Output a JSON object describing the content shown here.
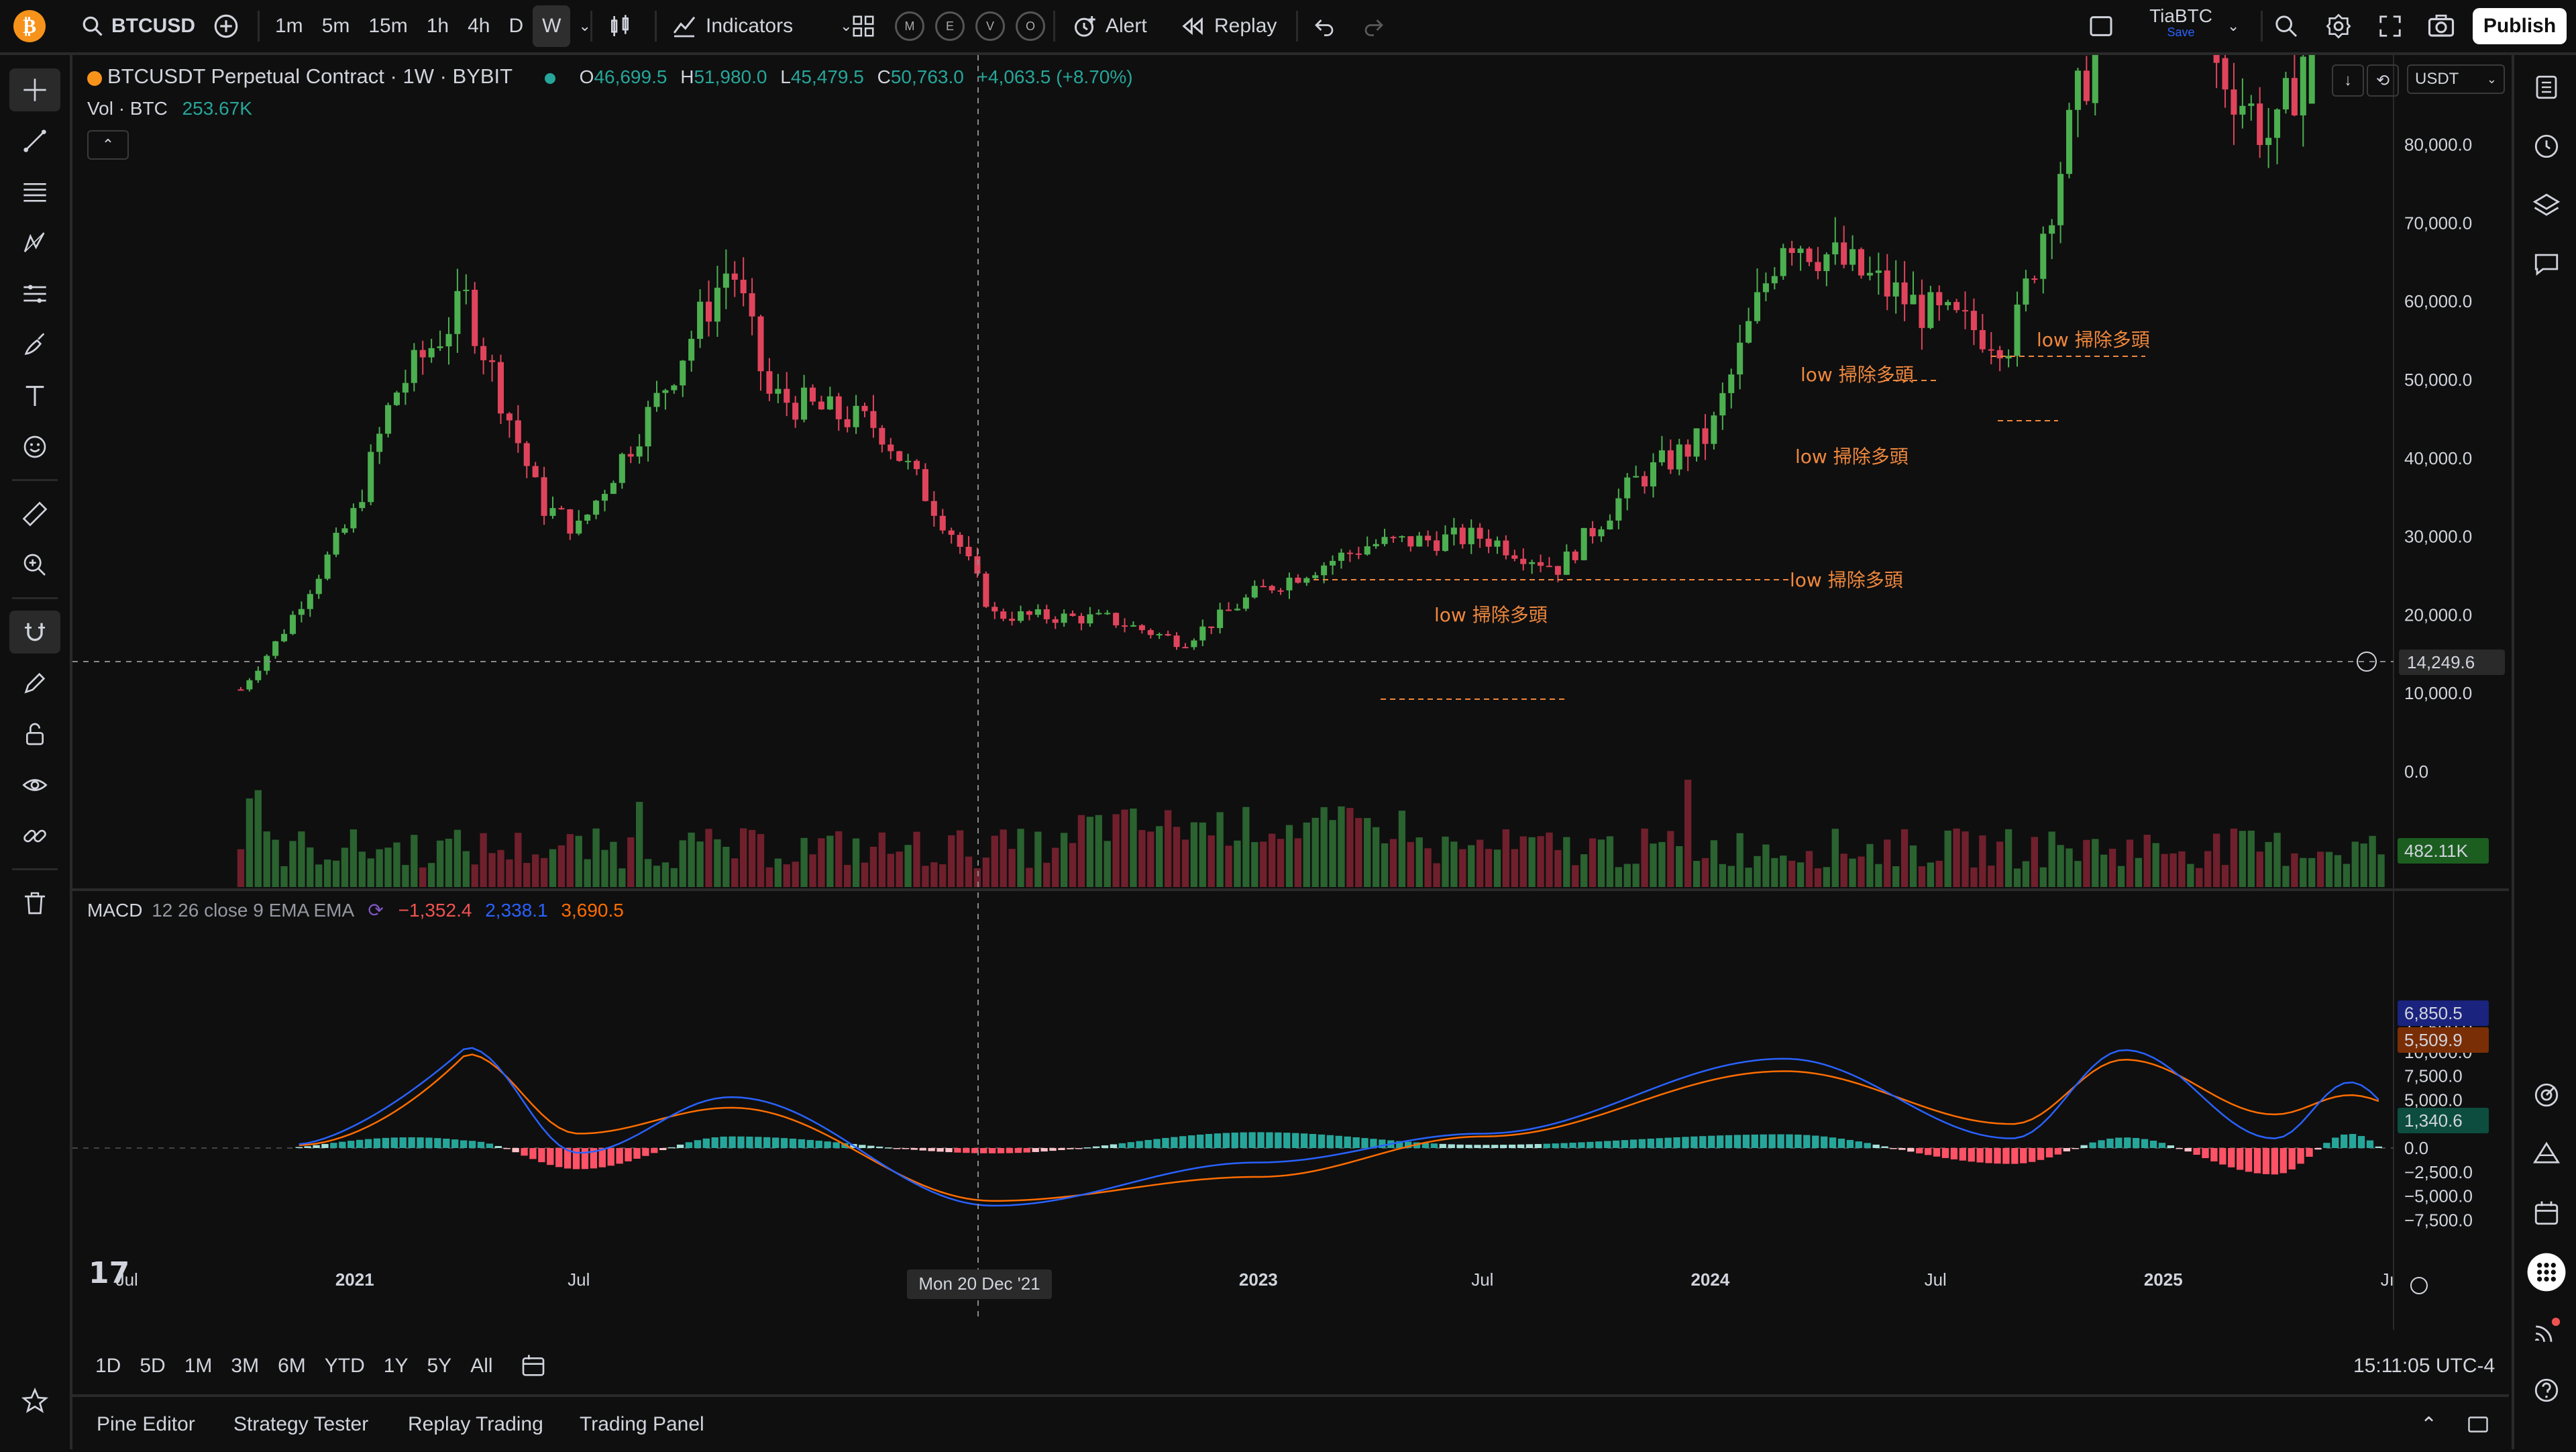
{
  "topbar": {
    "symbol": "BTCUSD",
    "timeframes": [
      "1m",
      "5m",
      "15m",
      "1h",
      "4h",
      "D",
      "W"
    ],
    "active_timeframe": "W",
    "indicators_label": "Indicators",
    "alert_label": "Alert",
    "replay_label": "Replay",
    "letter_buttons": [
      "M",
      "E",
      "V",
      "O"
    ],
    "account_name": "TiaBTC",
    "account_sub": "Save",
    "publish_label": "Publish"
  },
  "legend": {
    "title": "BTCUSDT Perpetual Contract · 1W · BYBIT",
    "o_label": "O",
    "o_val": "46,699.5",
    "h_label": "H",
    "h_val": "51,980.0",
    "l_label": "L",
    "l_val": "45,479.5",
    "c_label": "C",
    "c_val": "50,763.0",
    "change": "+4,063.5 (+8.70%)",
    "vol_label": "Vol · BTC",
    "vol_val": "253.67K"
  },
  "macd_legend": {
    "label": "MACD",
    "params": "12 26 close 9 EMA EMA",
    "hist": "−1,352.4",
    "macd": "2,338.1",
    "signal": "3,690.5"
  },
  "price_axis": {
    "currency": "USDT",
    "ticks": [
      "80,000.0",
      "70,000.0",
      "60,000.0",
      "50,000.0",
      "40,000.0",
      "30,000.0",
      "20,000.0",
      "10,000.0",
      "0.0"
    ],
    "crosshair_price": "14,249.6",
    "volume_badge": "482.11K"
  },
  "macd_axis": {
    "ticks": [
      "12,500.0",
      "10,000.0",
      "7,500.0",
      "5,000.0",
      "2,500.0",
      "0.0",
      "−2,500.0",
      "−5,000.0",
      "−7,500.0"
    ],
    "macd_badge": "6,850.5",
    "signal_badge": "5,509.9",
    "hist_badge": "1,340.6"
  },
  "time_axis": {
    "ticks": [
      "Jul",
      "2021",
      "Jul",
      "Jul",
      "2023",
      "Jul",
      "2024",
      "Jul",
      "2025",
      "Jı"
    ],
    "crosshair_date": "Mon 20 Dec '21"
  },
  "annotations": [
    "low 掃除多頭",
    "low 掃除多頭",
    "low 掃除多頭",
    "low 掃除多頭",
    "low 掃除多頭"
  ],
  "range_bar": {
    "ranges": [
      "1D",
      "5D",
      "1M",
      "3M",
      "6M",
      "YTD",
      "1Y",
      "5Y",
      "All"
    ],
    "clock": "15:11:05 UTC-4"
  },
  "bottom_tabs": [
    "Pine Editor",
    "Strategy Tester",
    "Replay Trading",
    "Trading Panel"
  ],
  "colors": {
    "up": "#26a69a",
    "down": "#ef5350",
    "candle_up": "#4caf50",
    "candle_down": "#e0445c",
    "macd_line": "#2962ff",
    "signal_line": "#ff6d00",
    "annotation": "#f0883e",
    "background": "#0f0f0f"
  },
  "chart_data": {
    "type": "candlestick",
    "symbol": "BTCUSDT",
    "interval": "1W",
    "price_points": [
      {
        "date": "2020-11",
        "close": 17000
      },
      {
        "date": "2021-01",
        "close": 33000
      },
      {
        "date": "2021-02",
        "close": 48000
      },
      {
        "date": "2021-04",
        "close": 60000
      },
      {
        "date": "2021-06",
        "close": 34000
      },
      {
        "date": "2021-07",
        "close": 31000
      },
      {
        "date": "2021-09",
        "close": 47000
      },
      {
        "date": "2021-11",
        "close": 65000
      },
      {
        "date": "2021-12",
        "close": 48000
      },
      {
        "date": "2022-03",
        "close": 44000
      },
      {
        "date": "2022-05",
        "close": 30000
      },
      {
        "date": "2022-06",
        "close": 20000
      },
      {
        "date": "2022-09",
        "close": 19500
      },
      {
        "date": "2022-11",
        "close": 16500
      },
      {
        "date": "2023-01",
        "close": 23000
      },
      {
        "date": "2023-04",
        "close": 29000
      },
      {
        "date": "2023-07",
        "close": 30000
      },
      {
        "date": "2023-09",
        "close": 26000
      },
      {
        "date": "2023-11",
        "close": 37000
      },
      {
        "date": "2024-01",
        "close": 43000
      },
      {
        "date": "2024-03",
        "close": 69000
      },
      {
        "date": "2024-07",
        "close": 58000
      },
      {
        "date": "2024-09",
        "close": 55000
      },
      {
        "date": "2024-11",
        "close": 90000
      },
      {
        "date": "2025-01",
        "close": 100000
      },
      {
        "date": "2025-04",
        "close": 80000
      },
      {
        "date": "2025-05",
        "close": 95000
      }
    ],
    "macd_points": [
      {
        "date": "2021-04",
        "macd": 10500,
        "signal": 9800
      },
      {
        "date": "2021-07",
        "macd": -500,
        "signal": 1500
      },
      {
        "date": "2021-11",
        "macd": 5300,
        "signal": 4200
      },
      {
        "date": "2022-06",
        "macd": -6000,
        "signal": -5500
      },
      {
        "date": "2023-01",
        "macd": -1500,
        "signal": -3000
      },
      {
        "date": "2023-07",
        "macd": 1500,
        "signal": 1200
      },
      {
        "date": "2024-03",
        "macd": 9300,
        "signal": 8000
      },
      {
        "date": "2024-09",
        "macd": 1000,
        "signal": 2500
      },
      {
        "date": "2024-12",
        "macd": 10200,
        "signal": 9200
      },
      {
        "date": "2025-04",
        "macd": 1000,
        "signal": 3500
      },
      {
        "date": "2025-06",
        "macd": 6850.5,
        "signal": 5509.9
      }
    ],
    "yrange_price": [
      0,
      85000
    ],
    "yrange_macd": [
      -8000,
      13000
    ]
  }
}
